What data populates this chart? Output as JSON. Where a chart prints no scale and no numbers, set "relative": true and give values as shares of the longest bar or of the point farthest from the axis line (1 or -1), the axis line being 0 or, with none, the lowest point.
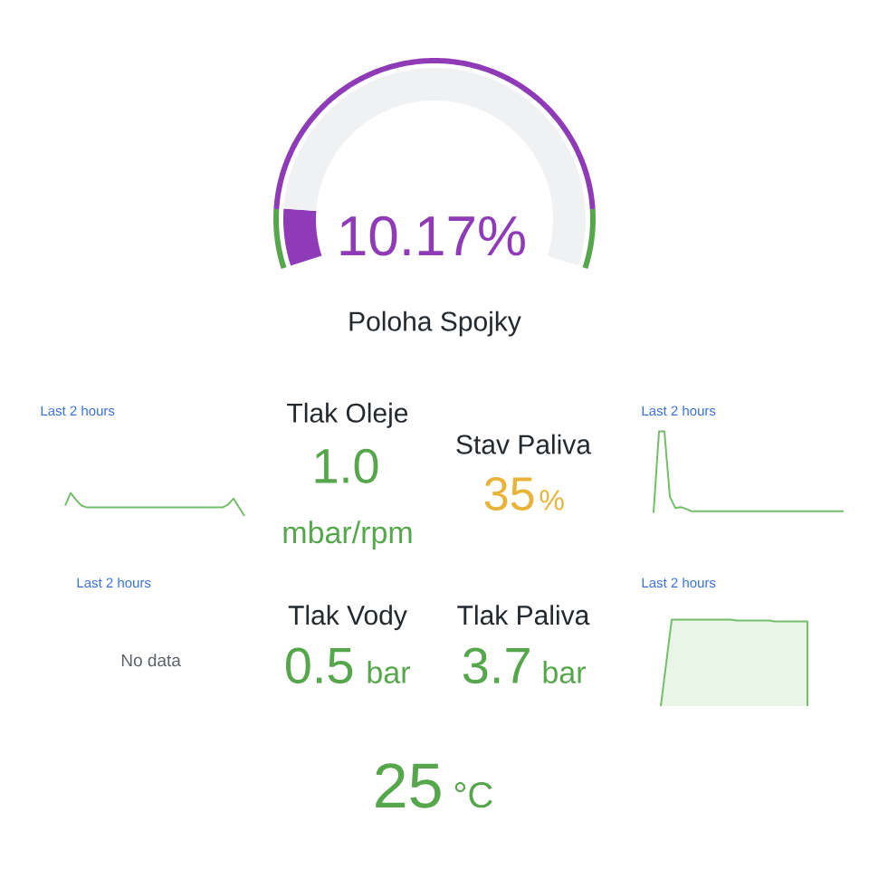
{
  "chart_data": [
    {
      "type": "donut",
      "title": "Poloha Spojky",
      "categories": [
        null,
        null
      ],
      "values": [
        10.17,
        89.83
      ],
      "colors": [
        "#8f3bb8",
        "#f0f1f2"
      ],
      "annotations": [
        "10.17%"
      ]
    },
    {
      "type": "donut",
      "categories": [
        null,
        null,
        null
      ],
      "values": [
        10,
        80,
        10
      ],
      "colors": [
        "#56a64b",
        "#8f3bb8",
        "#56a64b"
      ]
    },
    {
      "type": "line",
      "subtitle": "Last 2 hours",
      "relative": true,
      "color": "#73bf69",
      "categories": [
        null,
        null,
        null,
        null,
        null,
        null,
        null,
        null,
        null,
        null,
        null,
        null,
        null,
        null,
        null,
        null,
        null,
        null,
        null,
        null,
        null,
        null,
        null,
        null,
        null,
        null,
        null,
        null,
        null,
        null,
        null,
        null,
        null,
        null
      ],
      "values": [
        0.45,
        1.0,
        0.7,
        0.45,
        0.37,
        0.37,
        0.37,
        0.37,
        0.37,
        0.37,
        0.37,
        0.37,
        0.37,
        0.37,
        0.37,
        0.37,
        0.37,
        0.37,
        0.37,
        0.37,
        0.37,
        0.37,
        0.37,
        0.37,
        0.37,
        0.37,
        0.37,
        0.37,
        0.37,
        0.37,
        0.5,
        0.76,
        0.38,
        0
      ]
    },
    {
      "type": "other",
      "title": "Tlak Oleje",
      "annotations": [
        "1.0",
        "mbar/rpm"
      ],
      "color": "#56a64b"
    },
    {
      "type": "other",
      "title": "Stav Paliva",
      "annotations": [
        "35",
        "%"
      ],
      "color": "#e8b339"
    },
    {
      "type": "line",
      "subtitle": "Last 2 hours",
      "relative": true,
      "color": "#73bf69",
      "categories": [
        null,
        null,
        null,
        null,
        null,
        null,
        null,
        null,
        null,
        null,
        null,
        null,
        null,
        null,
        null,
        null,
        null,
        null,
        null,
        null,
        null,
        null,
        null,
        null,
        null,
        null,
        null,
        null,
        null,
        null,
        null,
        null,
        null,
        null,
        null,
        null
      ],
      "values": [
        0,
        1.0,
        1.0,
        0.2,
        0.06,
        0.07,
        0.05,
        0.02,
        0.02,
        0.02,
        0.02,
        0.02,
        0.02,
        0.02,
        0.02,
        0.02,
        0.02,
        0.02,
        0.02,
        0.02,
        0.02,
        0.02,
        0.02,
        0.02,
        0.02,
        0.02,
        0.02,
        0.02,
        0.02,
        0.02,
        0.02,
        0.02,
        0.02,
        0.02,
        0.02,
        0.02
      ]
    },
    {
      "type": "other",
      "subtitle": "Last 2 hours",
      "annotations": [
        "No data"
      ]
    },
    {
      "type": "other",
      "title": "Tlak Vody",
      "annotations": [
        "0.5",
        "bar"
      ],
      "color": "#56a64b"
    },
    {
      "type": "other",
      "title": "Tlak Paliva",
      "annotations": [
        "3.7",
        "bar"
      ],
      "color": "#56a64b"
    },
    {
      "type": "area",
      "subtitle": "Last 2 hours",
      "relative": true,
      "color": "#73bf69",
      "categories": [
        null,
        null,
        null,
        null,
        null,
        null,
        null,
        null,
        null,
        null,
        null,
        null,
        null,
        null,
        null,
        null,
        null,
        null,
        null,
        null,
        null,
        null,
        null,
        null,
        null,
        null,
        null,
        null
      ],
      "values": [
        0,
        0.5,
        1.0,
        1.0,
        1.0,
        1.0,
        1.0,
        1.0,
        1.0,
        1.0,
        1.0,
        1.0,
        1.0,
        1.0,
        0.99,
        0.99,
        0.99,
        0.99,
        0.99,
        0.99,
        0.99,
        0.98,
        0.98,
        0.98,
        0.98,
        0.98,
        0.98,
        0.98
      ]
    },
    {
      "type": "other",
      "annotations": [
        "25",
        "°C"
      ],
      "color": "#56a64b"
    }
  ]
}
